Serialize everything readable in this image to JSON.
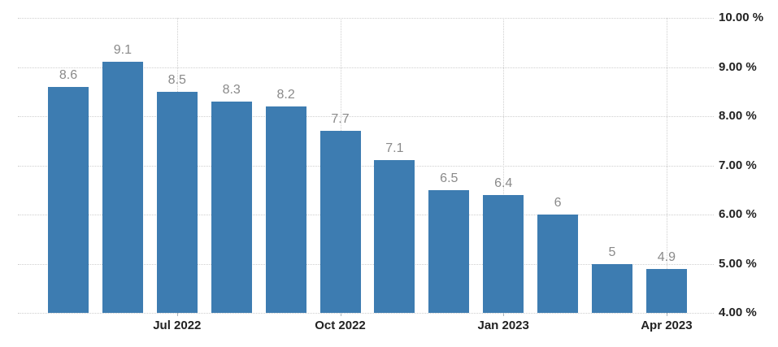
{
  "chart_data": {
    "type": "bar",
    "title": "",
    "values": [
      8.6,
      9.1,
      8.5,
      8.3,
      8.2,
      7.7,
      7.1,
      6.5,
      6.4,
      6,
      5,
      4.9
    ],
    "bar_value_labels": [
      "8.6",
      "9.1",
      "8.5",
      "8.3",
      "8.2",
      "7.7",
      "7.1",
      "6.5",
      "6.4",
      "6",
      "5",
      "4.9"
    ],
    "x_ticks": [
      {
        "label": "Jul 2022",
        "bar_index": 2
      },
      {
        "label": "Oct 2022",
        "bar_index": 5
      },
      {
        "label": "Jan 2023",
        "bar_index": 8
      },
      {
        "label": "Apr 2023",
        "bar_index": 11
      }
    ],
    "y_ticks": [
      {
        "label": "10.00 %",
        "value": 10
      },
      {
        "label": "9.00 %",
        "value": 9
      },
      {
        "label": "8.00 %",
        "value": 8
      },
      {
        "label": "7.00 %",
        "value": 7
      },
      {
        "label": "6.00 %",
        "value": 6
      },
      {
        "label": "5.00 %",
        "value": 5
      },
      {
        "label": "4.00 %",
        "value": 4
      }
    ],
    "ylim": [
      4,
      10
    ],
    "xlabel": "",
    "ylabel": "",
    "y_axis_position": "right",
    "grid_style": "dotted",
    "legend": "none",
    "colors": {
      "bar": "#3d7cb1",
      "value_label": "#8a8a8a",
      "axis_label": "#222222",
      "gridline": "#cfcfcf",
      "background": "#ffffff"
    }
  }
}
